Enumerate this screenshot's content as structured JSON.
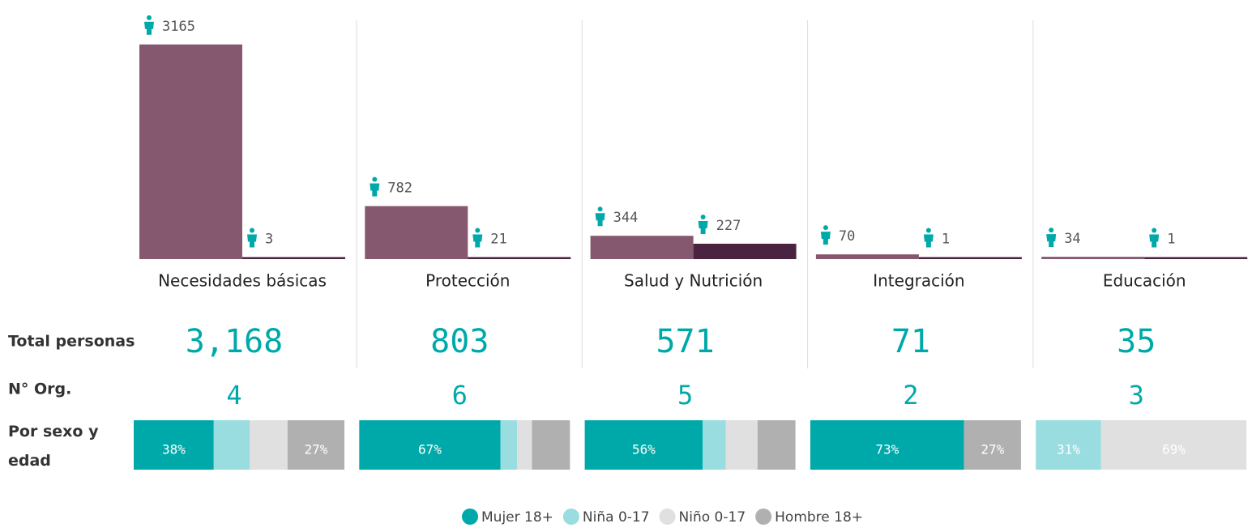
{
  "ylim": [
    0,
    3200
  ],
  "bar_colors": [
    "#85586f",
    "#4a2340"
  ],
  "row_labels": {
    "total": "Total personas",
    "orgs": "N° Org.",
    "breakdown": "Por sexo y edad"
  },
  "legend": [
    {
      "name": "Mujer 18+",
      "color": "#00a9a9"
    },
    {
      "name": "Niña 0-17",
      "color": "#99dde0"
    },
    {
      "name": "Niño 0-17",
      "color": "#e0e0e0"
    },
    {
      "name": "Hombre 18+",
      "color": "#b0b0b0"
    }
  ],
  "sectors": [
    {
      "name": "Necesidades básicas",
      "values": [
        3165,
        3
      ],
      "total": "3,168",
      "orgs": 4,
      "breakdown": [
        38,
        17,
        18,
        27
      ],
      "breakdown_labels": [
        "38%",
        null,
        null,
        "27%"
      ]
    },
    {
      "name": "Protección",
      "values": [
        782,
        21
      ],
      "total": "803",
      "orgs": 6,
      "breakdown": [
        67,
        8,
        7,
        18
      ],
      "breakdown_labels": [
        "67%",
        null,
        null,
        null
      ]
    },
    {
      "name": "Salud y Nutrición",
      "values": [
        344,
        227
      ],
      "total": "571",
      "orgs": 5,
      "breakdown": [
        56,
        11,
        15,
        18
      ],
      "breakdown_labels": [
        "56%",
        null,
        null,
        null
      ]
    },
    {
      "name": "Integración",
      "values": [
        70,
        1
      ],
      "total": "71",
      "orgs": 2,
      "breakdown": [
        73,
        0,
        0,
        27
      ],
      "breakdown_labels": [
        "73%",
        null,
        null,
        "27%"
      ]
    },
    {
      "name": "Educación",
      "values": [
        34,
        1
      ],
      "total": "35",
      "orgs": 3,
      "breakdown": [
        0,
        31,
        69,
        0
      ],
      "breakdown_labels": [
        null,
        "31%",
        "69%",
        null
      ]
    }
  ]
}
